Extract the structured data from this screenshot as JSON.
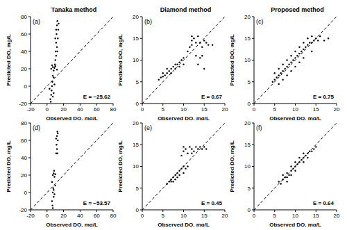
{
  "chart_data": [
    {
      "type": "scatter",
      "title": "Tanaka method",
      "label": "(a)",
      "annotation": "E = −25.62",
      "x_label": "Observed DO, mg/L",
      "y_label": "Predicted DO, mg/L",
      "xlim": [
        -20,
        80
      ],
      "ylim": [
        -20,
        80
      ],
      "xticks": [
        -20,
        0,
        20,
        40,
        60,
        80
      ],
      "yticks": [
        -20,
        0,
        20,
        40,
        60,
        80
      ],
      "color": "#000000",
      "marker": "circle",
      "line_style": "dashed",
      "x": [
        10,
        10.5,
        11,
        11.5,
        12,
        12.5,
        11,
        12,
        13,
        13.5,
        10,
        11,
        12.5,
        14,
        9.5,
        5,
        7,
        8,
        9,
        10,
        12,
        6,
        4,
        5,
        5.5,
        6,
        7,
        8,
        6.5,
        4.5,
        3,
        9,
        8,
        7
      ],
      "values": [
        30,
        40,
        50,
        60,
        70,
        75,
        35,
        45,
        55,
        65,
        55,
        65,
        40,
        72,
        25,
        20,
        22,
        18,
        21,
        23,
        19,
        24,
        -15,
        -10,
        -5,
        0,
        -12,
        -8,
        5,
        -18,
        -3,
        2,
        10,
        12
      ]
    },
    {
      "type": "scatter",
      "title": "Diamond method",
      "label": "(b)",
      "annotation": "E = 0.67",
      "x_label": "Observed DO, mg/L",
      "y_label": "Predicted DO, mg/L",
      "xlim": [
        0,
        20
      ],
      "ylim": [
        0,
        20
      ],
      "xticks": [
        0,
        5,
        10,
        15,
        20
      ],
      "yticks": [
        0,
        5,
        10,
        15,
        20
      ],
      "color": "#000000",
      "marker": "circle",
      "line_style": "dashed",
      "x": [
        4,
        4.5,
        5,
        5,
        5.5,
        6,
        6,
        6.5,
        7,
        7,
        7.5,
        8,
        8,
        8.5,
        9,
        9,
        9.5,
        10,
        10,
        11,
        11.5,
        12,
        12,
        12.5,
        13,
        13.5,
        14,
        14.5,
        15,
        15.5,
        16,
        17,
        13.5,
        14,
        14.5,
        15,
        13,
        12
      ],
      "values": [
        5.5,
        6,
        6.2,
        7,
        6.5,
        7,
        8,
        7.5,
        8,
        7,
        8.5,
        8,
        9,
        9,
        9.5,
        8.5,
        10,
        10.5,
        9,
        12,
        13,
        13.5,
        14.5,
        15,
        14,
        15.5,
        14,
        13,
        14.5,
        14,
        13.5,
        13.5,
        9,
        10.5,
        11,
        8,
        11,
        15.5
      ]
    },
    {
      "type": "scatter",
      "title": "Proposed method",
      "label": "(c)",
      "annotation": "E = 0.75",
      "x_label": "Observed DO, mg/L",
      "y_label": "Predicted DO, mg/L",
      "xlim": [
        0,
        20
      ],
      "ylim": [
        0,
        20
      ],
      "xticks": [
        0,
        5,
        10,
        15,
        20
      ],
      "yticks": [
        0,
        5,
        10,
        15,
        20
      ],
      "color": "#000000",
      "marker": "circle",
      "line_style": "dashed",
      "x": [
        4.5,
        5,
        5,
        5.5,
        6,
        6,
        6.5,
        7,
        7,
        7.5,
        8,
        8,
        8.5,
        9,
        9,
        9.5,
        10,
        10,
        10.5,
        11,
        11,
        11.5,
        12,
        12,
        12.5,
        13,
        13,
        13.5,
        14,
        14,
        14.5,
        15,
        15.5,
        16,
        17,
        18,
        6,
        8,
        10,
        12,
        14,
        9,
        11,
        7
      ],
      "values": [
        5,
        5.5,
        7,
        6,
        6.5,
        8,
        7,
        7.5,
        9,
        8,
        8.5,
        10,
        9,
        9.5,
        11,
        10,
        10.5,
        12,
        11,
        11.5,
        13,
        12,
        12.5,
        14,
        13,
        13.5,
        15,
        14,
        14,
        15.5,
        14.5,
        15,
        14.5,
        15.5,
        14.5,
        15,
        4.5,
        6.5,
        8.5,
        10.5,
        12,
        7.5,
        9.5,
        5.5
      ]
    },
    {
      "type": "scatter",
      "label": "(d)",
      "annotation": "E = −53.57",
      "x_label": "Observed DO, mg/L",
      "y_label": "Predicted DO, mg/L",
      "xlim": [
        -20,
        80
      ],
      "ylim": [
        -20,
        80
      ],
      "xticks": [
        -20,
        0,
        20,
        40,
        60,
        80
      ],
      "yticks": [
        -20,
        0,
        20,
        40,
        60,
        80
      ],
      "color": "#000000",
      "marker": "circle",
      "line_style": "dashed",
      "x": [
        11,
        11.5,
        12,
        12.5,
        12,
        13,
        11,
        12.5,
        13,
        7,
        8,
        9,
        10,
        8.5,
        7,
        7.5,
        8,
        6,
        6.5,
        8,
        9,
        7,
        10,
        6
      ],
      "values": [
        45,
        55,
        65,
        70,
        50,
        60,
        62,
        45,
        68,
        20,
        22,
        18,
        21,
        25,
        0,
        5,
        -5,
        -10,
        -15,
        3,
        -2,
        -18,
        8,
        12
      ]
    },
    {
      "type": "scatter",
      "label": "(e)",
      "annotation": "E = 0.45",
      "x_label": "Observed DO, mg/L",
      "y_label": "Predicted DO, mg/L",
      "xlim": [
        0,
        20
      ],
      "ylim": [
        0,
        20
      ],
      "xticks": [
        0,
        5,
        10,
        15,
        20
      ],
      "yticks": [
        0,
        5,
        10,
        15,
        20
      ],
      "color": "#000000",
      "marker": "circle",
      "line_style": "dashed",
      "x": [
        6,
        6.5,
        7,
        7,
        7.5,
        8,
        8,
        8.5,
        9,
        9,
        9.5,
        10,
        10,
        10.5,
        11,
        7.5,
        8.5,
        9.5,
        10,
        10.5,
        11,
        11.5,
        12,
        12.5,
        13,
        13.5,
        14,
        14.5,
        15,
        15.5,
        10,
        12
      ],
      "values": [
        6,
        6.5,
        7,
        6.5,
        7.5,
        8,
        7,
        8.5,
        9,
        8,
        9.5,
        10,
        8.5,
        9.5,
        10,
        6.5,
        7.5,
        12.5,
        13.5,
        14,
        13,
        14.5,
        14,
        13.5,
        14.5,
        14,
        14.5,
        14,
        14.5,
        14,
        14.5,
        13
      ]
    },
    {
      "type": "scatter",
      "label": "(f)",
      "annotation": "E = 0.64",
      "x_label": "Observed DO, mg/L",
      "y_label": "Predicted DO, mg/L",
      "xlim": [
        0,
        20
      ],
      "ylim": [
        0,
        20
      ],
      "xticks": [
        0,
        5,
        10,
        15,
        20
      ],
      "yticks": [
        0,
        5,
        10,
        15,
        20
      ],
      "color": "#000000",
      "marker": "circle",
      "line_style": "dashed",
      "x": [
        6,
        6.5,
        7,
        7.5,
        8,
        8,
        8.5,
        9,
        9,
        9.5,
        10,
        10,
        10.5,
        11,
        11,
        11.5,
        12,
        12,
        12.5,
        13,
        13.5,
        14,
        14.5,
        15,
        7,
        8,
        10,
        12,
        13,
        9
      ],
      "values": [
        6.5,
        6,
        7,
        7.5,
        7.5,
        8.5,
        8,
        9,
        10,
        9.5,
        10,
        11,
        10.5,
        11,
        12,
        11.5,
        12,
        13,
        12.5,
        13,
        13.5,
        13.5,
        14,
        14.5,
        8,
        6.5,
        9,
        11,
        12,
        8
      ]
    }
  ]
}
